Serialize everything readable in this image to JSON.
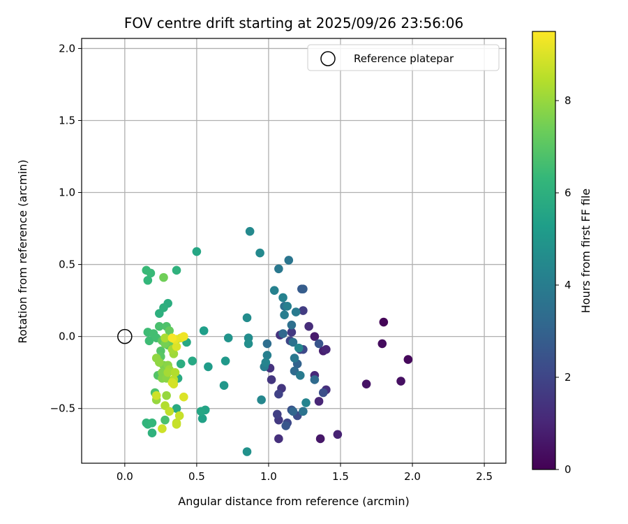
{
  "chart_data": {
    "type": "scatter",
    "title": "FOV centre drift starting at 2025/09/26 23:56:06",
    "xlabel": "Angular distance from reference (arcmin)",
    "ylabel": "Rotation from reference (arcmin)",
    "xlim": [
      -0.3,
      2.65
    ],
    "ylim": [
      -0.88,
      2.07
    ],
    "xticks": [
      0.0,
      0.5,
      1.0,
      1.5,
      2.0,
      2.5
    ],
    "xtick_labels": [
      "0.0",
      "0.5",
      "1.0",
      "1.5",
      "2.0",
      "2.5"
    ],
    "yticks": [
      -0.5,
      0.0,
      0.5,
      1.0,
      1.5,
      2.0
    ],
    "ytick_labels": [
      "−0.5",
      "0.0",
      "0.5",
      "1.0",
      "1.5",
      "2.0"
    ],
    "grid": true,
    "legend": {
      "position": "top-right",
      "entries": [
        "Reference platepar"
      ]
    },
    "reference_point": {
      "label": "Reference platepar",
      "x": 0.0,
      "y": 0.0
    },
    "colorbar": {
      "label": "Hours from first FF file",
      "range": [
        0,
        9.5
      ],
      "ticks": [
        0,
        2,
        4,
        6,
        8
      ],
      "tick_labels": [
        "0",
        "2",
        "4",
        "6",
        "8"
      ],
      "colormap": [
        "#440154",
        "#482878",
        "#3e4989",
        "#31688e",
        "#26828e",
        "#1f9e89",
        "#35b779",
        "#6ece58",
        "#b5de2b",
        "#fde725"
      ]
    },
    "points": [
      {
        "x": 1.8,
        "y": 0.1,
        "h": 0.1
      },
      {
        "x": 1.97,
        "y": -0.16,
        "h": 0.2
      },
      {
        "x": 1.79,
        "y": -0.05,
        "h": 0.3
      },
      {
        "x": 1.92,
        "y": -0.31,
        "h": 0.4
      },
      {
        "x": 1.68,
        "y": -0.33,
        "h": 0.5
      },
      {
        "x": 1.36,
        "y": -0.71,
        "h": 0.6
      },
      {
        "x": 1.32,
        "y": 0.0,
        "h": 0.7
      },
      {
        "x": 1.38,
        "y": -0.1,
        "h": 0.8
      },
      {
        "x": 1.48,
        "y": -0.68,
        "h": 0.9
      },
      {
        "x": 1.35,
        "y": -0.45,
        "h": 1.0
      },
      {
        "x": 1.4,
        "y": -0.09,
        "h": 1.0
      },
      {
        "x": 1.32,
        "y": -0.27,
        "h": 1.1
      },
      {
        "x": 1.28,
        "y": 0.07,
        "h": 1.2
      },
      {
        "x": 1.4,
        "y": -0.37,
        "h": 1.3
      },
      {
        "x": 1.07,
        "y": -0.71,
        "h": 1.3
      },
      {
        "x": 1.08,
        "y": 0.01,
        "h": 1.4
      },
      {
        "x": 1.01,
        "y": -0.22,
        "h": 1.4
      },
      {
        "x": 1.02,
        "y": -0.3,
        "h": 1.5
      },
      {
        "x": 1.09,
        "y": -0.36,
        "h": 1.5
      },
      {
        "x": 1.07,
        "y": -0.58,
        "h": 1.6
      },
      {
        "x": 1.16,
        "y": 0.03,
        "h": 1.6
      },
      {
        "x": 1.24,
        "y": 0.18,
        "h": 1.7
      },
      {
        "x": 1.22,
        "y": -0.09,
        "h": 1.7
      },
      {
        "x": 1.06,
        "y": -0.54,
        "h": 1.8
      },
      {
        "x": 1.07,
        "y": -0.4,
        "h": 1.9
      },
      {
        "x": 1.15,
        "y": -0.03,
        "h": 2.0
      },
      {
        "x": 1.13,
        "y": -0.6,
        "h": 2.1
      },
      {
        "x": 1.24,
        "y": -0.09,
        "h": 2.1
      },
      {
        "x": 1.2,
        "y": -0.55,
        "h": 2.2
      },
      {
        "x": 1.38,
        "y": -0.39,
        "h": 2.3
      },
      {
        "x": 1.16,
        "y": -0.51,
        "h": 2.4
      },
      {
        "x": 1.35,
        "y": -0.05,
        "h": 2.5
      },
      {
        "x": 1.12,
        "y": -0.62,
        "h": 2.6
      },
      {
        "x": 1.23,
        "y": 0.33,
        "h": 2.7
      },
      {
        "x": 1.24,
        "y": 0.33,
        "h": 2.8
      },
      {
        "x": 1.2,
        "y": -0.19,
        "h": 3.0
      },
      {
        "x": 1.17,
        "y": -0.52,
        "h": 3.1
      },
      {
        "x": 1.1,
        "y": 0.02,
        "h": 3.2
      },
      {
        "x": 1.18,
        "y": -0.24,
        "h": 3.3
      },
      {
        "x": 1.32,
        "y": -0.3,
        "h": 3.3
      },
      {
        "x": 0.99,
        "y": -0.05,
        "h": 3.4
      },
      {
        "x": 1.16,
        "y": 0.08,
        "h": 3.5
      },
      {
        "x": 1.11,
        "y": 0.21,
        "h": 3.5
      },
      {
        "x": 1.17,
        "y": -0.04,
        "h": 3.6
      },
      {
        "x": 1.24,
        "y": -0.52,
        "h": 3.6
      },
      {
        "x": 1.14,
        "y": 0.53,
        "h": 3.7
      },
      {
        "x": 1.18,
        "y": -0.15,
        "h": 3.8
      },
      {
        "x": 1.07,
        "y": 0.47,
        "h": 3.8
      },
      {
        "x": 1.19,
        "y": 0.17,
        "h": 3.9
      },
      {
        "x": 1.22,
        "y": -0.27,
        "h": 3.9
      },
      {
        "x": 0.97,
        "y": -0.21,
        "h": 4.0
      },
      {
        "x": 1.11,
        "y": 0.15,
        "h": 4.0
      },
      {
        "x": 1.13,
        "y": 0.21,
        "h": 4.1
      },
      {
        "x": 0.99,
        "y": -0.13,
        "h": 4.1
      },
      {
        "x": 1.04,
        "y": 0.32,
        "h": 4.2
      },
      {
        "x": 1.1,
        "y": 0.27,
        "h": 4.2
      },
      {
        "x": 0.98,
        "y": -0.18,
        "h": 4.3
      },
      {
        "x": 1.26,
        "y": -0.46,
        "h": 4.3
      },
      {
        "x": 1.21,
        "y": -0.08,
        "h": 4.4
      },
      {
        "x": 0.95,
        "y": -0.44,
        "h": 4.4
      },
      {
        "x": 0.87,
        "y": 0.73,
        "h": 4.5
      },
      {
        "x": 0.94,
        "y": 0.58,
        "h": 4.5
      },
      {
        "x": 0.85,
        "y": 0.13,
        "h": 4.6
      },
      {
        "x": 0.86,
        "y": -0.01,
        "h": 4.6
      },
      {
        "x": 0.86,
        "y": -0.05,
        "h": 4.7
      },
      {
        "x": 0.85,
        "y": -0.8,
        "h": 4.8
      },
      {
        "x": 0.72,
        "y": -0.01,
        "h": 4.9
      },
      {
        "x": 0.69,
        "y": -0.34,
        "h": 5.0
      },
      {
        "x": 0.7,
        "y": -0.17,
        "h": 5.1
      },
      {
        "x": 0.58,
        "y": -0.21,
        "h": 5.2
      },
      {
        "x": 0.55,
        "y": 0.04,
        "h": 5.3
      },
      {
        "x": 0.54,
        "y": -0.57,
        "h": 5.4
      },
      {
        "x": 0.56,
        "y": -0.51,
        "h": 5.5
      },
      {
        "x": 0.53,
        "y": -0.52,
        "h": 5.6
      },
      {
        "x": 0.5,
        "y": 0.59,
        "h": 5.6
      },
      {
        "x": 0.47,
        "y": -0.17,
        "h": 5.7
      },
      {
        "x": 0.43,
        "y": -0.04,
        "h": 5.7
      },
      {
        "x": 0.36,
        "y": -0.5,
        "h": 5.8
      },
      {
        "x": 0.37,
        "y": -0.29,
        "h": 5.8
      },
      {
        "x": 0.39,
        "y": -0.19,
        "h": 5.9
      },
      {
        "x": 0.3,
        "y": 0.23,
        "h": 5.9
      },
      {
        "x": 0.27,
        "y": 0.2,
        "h": 6.0
      },
      {
        "x": 0.24,
        "y": 0.16,
        "h": 6.0
      },
      {
        "x": 0.36,
        "y": 0.46,
        "h": 6.1
      },
      {
        "x": 0.19,
        "y": -0.67,
        "h": 6.1
      },
      {
        "x": 0.16,
        "y": -0.61,
        "h": 6.2
      },
      {
        "x": 0.15,
        "y": -0.6,
        "h": 6.2
      },
      {
        "x": 0.19,
        "y": -0.6,
        "h": 6.3
      },
      {
        "x": 0.16,
        "y": 0.39,
        "h": 6.3
      },
      {
        "x": 0.15,
        "y": 0.46,
        "h": 6.4
      },
      {
        "x": 0.18,
        "y": 0.44,
        "h": 6.4
      },
      {
        "x": 0.16,
        "y": 0.03,
        "h": 6.5
      },
      {
        "x": 0.17,
        "y": -0.03,
        "h": 6.5
      },
      {
        "x": 0.2,
        "y": 0.02,
        "h": 6.6
      },
      {
        "x": 0.22,
        "y": -0.01,
        "h": 6.6
      },
      {
        "x": 0.24,
        "y": 0.07,
        "h": 6.7
      },
      {
        "x": 0.28,
        "y": -0.58,
        "h": 6.7
      },
      {
        "x": 0.29,
        "y": 0.07,
        "h": 6.8
      },
      {
        "x": 0.21,
        "y": -0.39,
        "h": 6.8
      },
      {
        "x": 0.23,
        "y": -0.27,
        "h": 6.9
      },
      {
        "x": 0.25,
        "y": -0.1,
        "h": 6.9
      },
      {
        "x": 0.25,
        "y": -0.14,
        "h": 7.0
      },
      {
        "x": 0.3,
        "y": -0.06,
        "h": 7.0
      },
      {
        "x": 0.26,
        "y": -0.03,
        "h": 7.1
      },
      {
        "x": 0.31,
        "y": 0.04,
        "h": 7.2
      },
      {
        "x": 0.32,
        "y": -0.01,
        "h": 7.3
      },
      {
        "x": 0.34,
        "y": -0.05,
        "h": 7.3
      },
      {
        "x": 0.27,
        "y": 0.41,
        "h": 7.4
      },
      {
        "x": 0.28,
        "y": -0.05,
        "h": 7.5
      },
      {
        "x": 0.27,
        "y": -0.2,
        "h": 7.6
      },
      {
        "x": 0.26,
        "y": -0.25,
        "h": 7.7
      },
      {
        "x": 0.26,
        "y": -0.29,
        "h": 7.7
      },
      {
        "x": 0.29,
        "y": -0.29,
        "h": 7.8
      },
      {
        "x": 0.3,
        "y": -0.2,
        "h": 7.8
      },
      {
        "x": 0.24,
        "y": -0.18,
        "h": 7.9
      },
      {
        "x": 0.22,
        "y": -0.15,
        "h": 7.9
      },
      {
        "x": 0.22,
        "y": -0.44,
        "h": 8.0
      },
      {
        "x": 0.29,
        "y": -0.41,
        "h": 8.0
      },
      {
        "x": 0.34,
        "y": -0.12,
        "h": 8.1
      },
      {
        "x": 0.31,
        "y": -0.23,
        "h": 8.1
      },
      {
        "x": 0.3,
        "y": -0.25,
        "h": 8.2
      },
      {
        "x": 0.33,
        "y": -0.09,
        "h": 8.2
      },
      {
        "x": 0.36,
        "y": -0.02,
        "h": 8.3
      },
      {
        "x": 0.28,
        "y": -0.01,
        "h": 8.3
      },
      {
        "x": 0.28,
        "y": -0.48,
        "h": 8.4
      },
      {
        "x": 0.35,
        "y": -0.25,
        "h": 8.4
      },
      {
        "x": 0.34,
        "y": -0.3,
        "h": 8.5
      },
      {
        "x": 0.31,
        "y": -0.52,
        "h": 8.6
      },
      {
        "x": 0.36,
        "y": -0.6,
        "h": 8.6
      },
      {
        "x": 0.38,
        "y": -0.55,
        "h": 8.7
      },
      {
        "x": 0.36,
        "y": -0.61,
        "h": 8.7
      },
      {
        "x": 0.26,
        "y": -0.64,
        "h": 8.8
      },
      {
        "x": 0.22,
        "y": -0.41,
        "h": 8.8
      },
      {
        "x": 0.33,
        "y": -0.32,
        "h": 8.9
      },
      {
        "x": 0.34,
        "y": -0.33,
        "h": 8.9
      },
      {
        "x": 0.41,
        "y": -0.42,
        "h": 9.0
      },
      {
        "x": 0.36,
        "y": -0.07,
        "h": 9.0
      },
      {
        "x": 0.39,
        "y": -0.01,
        "h": 9.1
      },
      {
        "x": 0.35,
        "y": -0.02,
        "h": 9.2
      },
      {
        "x": 0.41,
        "y": 0.0,
        "h": 9.3
      },
      {
        "x": 0.33,
        "y": -0.01,
        "h": 9.4
      }
    ]
  }
}
